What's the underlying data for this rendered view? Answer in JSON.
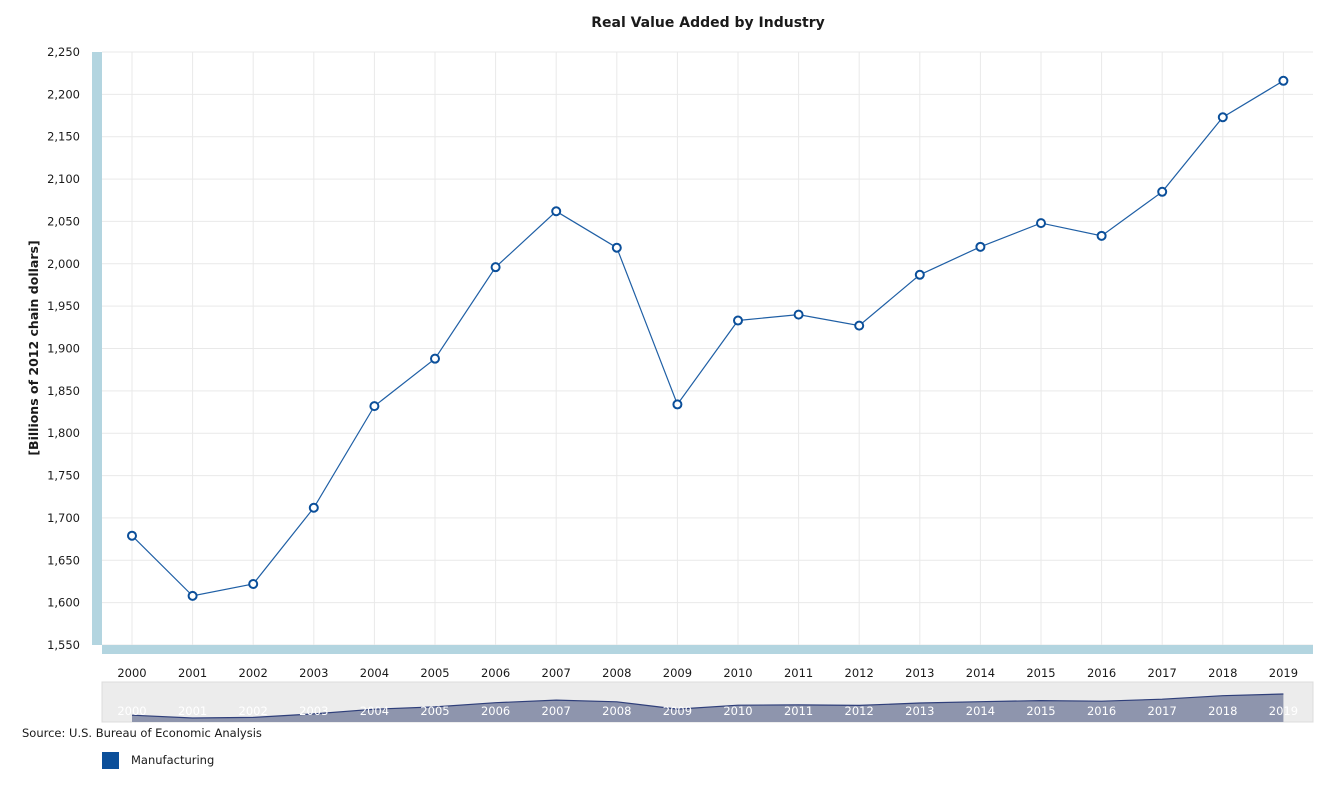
{
  "chart_data": {
    "type": "line",
    "title": "Real Value Added by Industry",
    "ylabel": "[Billions of 2012 chain dollars]",
    "xlabel": "",
    "ylim": [
      1550,
      2250
    ],
    "y_ticks": [
      "1,550",
      "1,600",
      "1,650",
      "1,700",
      "1,750",
      "1,800",
      "1,850",
      "1,900",
      "1,950",
      "2,000",
      "2,050",
      "2,100",
      "2,150",
      "2,200",
      "2,250"
    ],
    "x": [
      "2000",
      "2001",
      "2002",
      "2003",
      "2004",
      "2005",
      "2006",
      "2007",
      "2008",
      "2009",
      "2010",
      "2011",
      "2012",
      "2013",
      "2014",
      "2015",
      "2016",
      "2017",
      "2018",
      "2019"
    ],
    "series": [
      {
        "name": "Manufacturing",
        "values": [
          1679,
          1608,
          1622,
          1712,
          1832,
          1888,
          1996,
          2062,
          2019,
          1834,
          1933,
          1940,
          1927,
          1987,
          2020,
          2048,
          2033,
          2085,
          2173,
          2216
        ]
      }
    ],
    "grid": true,
    "legend": "bottom-left",
    "colors": {
      "series": "#0b4f9a",
      "axis_band": "#b3d5e0",
      "navigator_fill": "#8e95ad",
      "navigator_bg": "#ececec"
    }
  },
  "source": "Source: U.S. Bureau of Economic Analysis",
  "legend": {
    "label": "Manufacturing",
    "color": "#0b4f9a"
  }
}
